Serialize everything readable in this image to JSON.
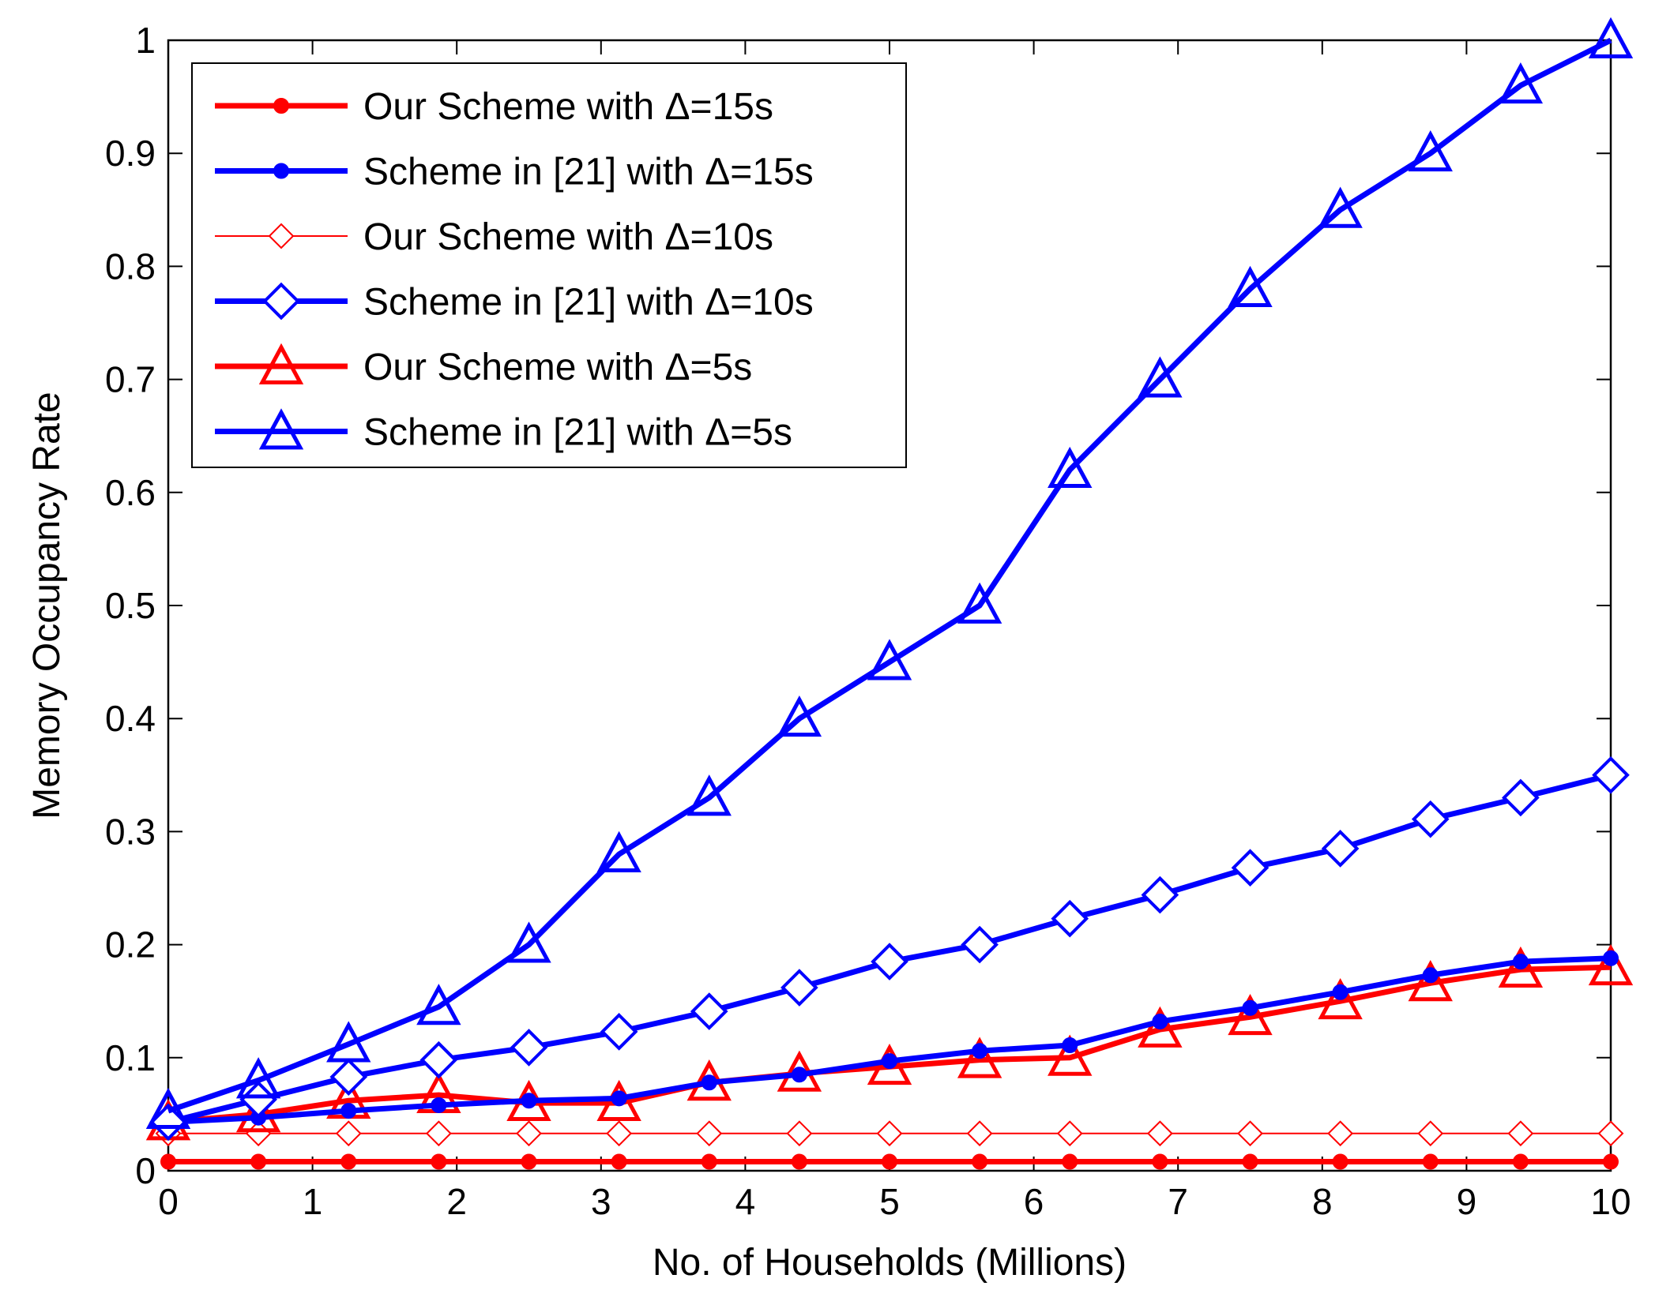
{
  "chart_data": {
    "type": "line",
    "title": "",
    "xlabel": "No. of Households (Millions)",
    "ylabel": "Memory Occupancy Rate",
    "xlim": [
      0,
      10
    ],
    "ylim": [
      0,
      1
    ],
    "xticks": [
      0,
      1,
      2,
      3,
      4,
      5,
      6,
      7,
      8,
      9,
      10
    ],
    "xtick_labels": [
      "0",
      "1",
      "2",
      "3",
      "4",
      "5",
      "6",
      "7",
      "8",
      "9",
      "10"
    ],
    "yticks": [
      0,
      0.1,
      0.2,
      0.3,
      0.4,
      0.5,
      0.6,
      0.7,
      0.8,
      0.9,
      1
    ],
    "ytick_labels": [
      "0",
      "0.1",
      "0.2",
      "0.3",
      "0.4",
      "0.5",
      "0.6",
      "0.7",
      "0.8",
      "0.9",
      "1"
    ],
    "grid": false,
    "legend_position": "top-left",
    "x": [
      0,
      0.625,
      1.25,
      1.875,
      2.5,
      3.125,
      3.75,
      4.375,
      5,
      5.625,
      6.25,
      6.875,
      7.5,
      8.125,
      8.75,
      9.375,
      10
    ],
    "series": [
      {
        "name": "Our Scheme with Δ=15s",
        "color": "#ff0000",
        "marker": "dot",
        "line_weight": "thick",
        "values": [
          0.008,
          0.008,
          0.008,
          0.008,
          0.008,
          0.008,
          0.008,
          0.008,
          0.008,
          0.008,
          0.008,
          0.008,
          0.008,
          0.008,
          0.008,
          0.008,
          0.008
        ]
      },
      {
        "name": "Scheme in [21] with Δ=15s",
        "color": "#0000ff",
        "marker": "dot",
        "line_weight": "thick",
        "values": [
          0.043,
          0.047,
          0.053,
          0.058,
          0.062,
          0.064,
          0.078,
          0.085,
          0.097,
          0.106,
          0.111,
          0.132,
          0.144,
          0.158,
          0.173,
          0.185,
          0.188
        ]
      },
      {
        "name": "Our Scheme with Δ=10s",
        "color": "#ff0000",
        "marker": "diamond",
        "line_weight": "thin",
        "values": [
          0.033,
          0.033,
          0.033,
          0.033,
          0.033,
          0.033,
          0.033,
          0.033,
          0.033,
          0.033,
          0.033,
          0.033,
          0.033,
          0.033,
          0.033,
          0.033,
          0.033
        ]
      },
      {
        "name": "Scheme in [21] with Δ=10s",
        "color": "#0000ff",
        "marker": "diamond",
        "line_weight": "thick",
        "values": [
          0.043,
          0.063,
          0.083,
          0.098,
          0.109,
          0.123,
          0.141,
          0.162,
          0.185,
          0.2,
          0.223,
          0.244,
          0.268,
          0.285,
          0.311,
          0.33,
          0.35
        ]
      },
      {
        "name": "Our Scheme with Δ=5s",
        "color": "#ff0000",
        "marker": "triangle",
        "line_weight": "thick",
        "values": [
          0.043,
          0.05,
          0.062,
          0.067,
          0.06,
          0.06,
          0.078,
          0.086,
          0.092,
          0.098,
          0.1,
          0.125,
          0.136,
          0.15,
          0.166,
          0.178,
          0.18
        ]
      },
      {
        "name": "Scheme in [21] with Δ=5s",
        "color": "#0000ff",
        "marker": "triangle",
        "line_weight": "thick",
        "values": [
          0.053,
          0.08,
          0.112,
          0.145,
          0.2,
          0.28,
          0.33,
          0.4,
          0.45,
          0.5,
          0.62,
          0.7,
          0.78,
          0.85,
          0.9,
          0.96,
          1.0
        ]
      }
    ]
  }
}
